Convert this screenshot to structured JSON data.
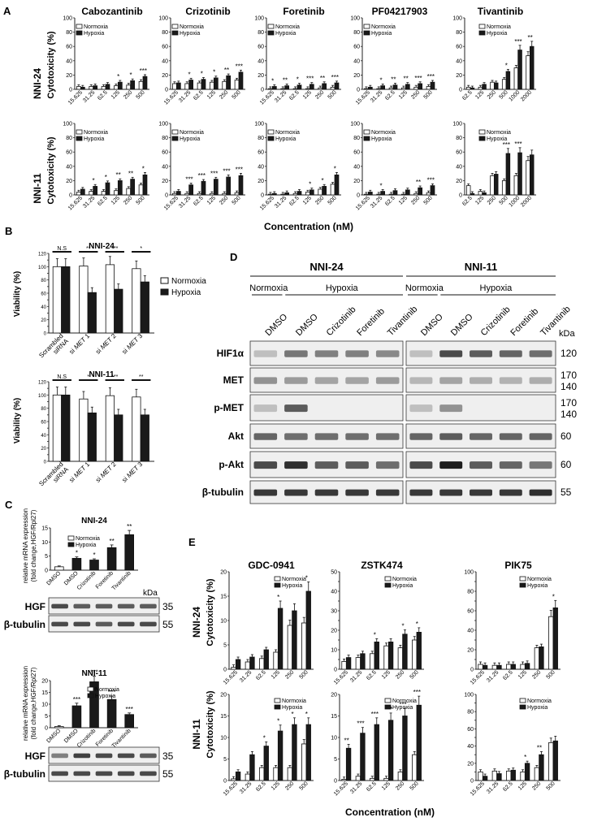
{
  "panel_letters": [
    "A",
    "B",
    "C",
    "D",
    "E"
  ],
  "panel_a": {
    "row_labels": [
      "NNI-24",
      "NNI-11"
    ],
    "ylabel": "Cytotoxicity (%)",
    "xlabel": "Concentration (nM)"
  },
  "legend": {
    "normoxia": "Normoxia",
    "hypoxia": "Hypoxia"
  },
  "panel_b": {
    "ylabel": "Viability (%)",
    "legend": {
      "normoxia": "Normoxia",
      "hypoxia": "Hypoxia"
    }
  },
  "panel_c": {
    "ylabel_lines": [
      "relative mRNA expression",
      "(fold change,HGF/Rpl27)"
    ],
    "blot_labels": [
      "HGF",
      "β-tubulin"
    ],
    "mw": [
      "35",
      "55"
    ],
    "kda": "kDa"
  },
  "panel_d": {
    "cells": [
      "NNI-24",
      "NNI-11"
    ],
    "conditions": [
      "Normoxia",
      "Hypoxia"
    ],
    "lanes": [
      "DMSO",
      "DMSO",
      "Crizotinib",
      "Foretinib",
      "Tivantinib"
    ],
    "rows": [
      "HIF1α",
      "MET",
      "p-MET",
      "Akt",
      "p-Akt",
      "β-tubulin"
    ],
    "mw": [
      "120",
      "170\n140",
      "170\n140",
      "60",
      "60",
      "55"
    ],
    "kda": "kDa"
  },
  "panel_e": {
    "row_labels": [
      "NNI-24",
      "NNI-11"
    ],
    "ylabel": "Cytotoxicity (%)",
    "xlabel": "Concentration (nM)"
  },
  "colors": {
    "normoxia": "#ffffff",
    "hypoxia": "#1a1a1a",
    "axis": "#222222"
  },
  "chart_data": [
    {
      "id": "A-cabo-24",
      "type": "bar",
      "title": "Cabozantinib",
      "categories": [
        "15.625",
        "31.25",
        "62.5",
        "125",
        "250",
        "500"
      ],
      "ylim": [
        0,
        100
      ],
      "yticks": [
        0,
        20,
        40,
        60,
        80,
        100
      ],
      "series": [
        {
          "name": "Normoxia",
          "values": [
            4,
            4,
            4,
            5,
            6,
            11
          ]
        },
        {
          "name": "Hypoxia",
          "values": [
            3,
            5,
            7,
            10,
            12,
            18
          ]
        }
      ],
      "sig": [
        "",
        "",
        "",
        "*",
        "*",
        "***"
      ]
    },
    {
      "id": "A-criz-24",
      "type": "bar",
      "title": "Crizotinib",
      "categories": [
        "15.625",
        "31.25",
        "62.5",
        "125",
        "250",
        "500"
      ],
      "ylim": [
        0,
        100
      ],
      "yticks": [
        0,
        20,
        40,
        60,
        80,
        100
      ],
      "series": [
        {
          "name": "Normoxia",
          "values": [
            8,
            8,
            9,
            10,
            11,
            13
          ]
        },
        {
          "name": "Hypoxia",
          "values": [
            9,
            13,
            14,
            16,
            19,
            24
          ]
        }
      ],
      "sig": [
        "",
        "*",
        "*",
        "*",
        "**",
        "***"
      ]
    },
    {
      "id": "A-fore-24",
      "type": "bar",
      "title": "Foretinib",
      "categories": [
        "15.625",
        "31.25",
        "62.5",
        "125",
        "250",
        "500"
      ],
      "ylim": [
        0,
        100
      ],
      "yticks": [
        0,
        20,
        40,
        60,
        80,
        100
      ],
      "series": [
        {
          "name": "Normoxia",
          "values": [
            1,
            1,
            1,
            1,
            2,
            3
          ]
        },
        {
          "name": "Hypoxia",
          "values": [
            4,
            5,
            6,
            7,
            8,
            9
          ]
        }
      ],
      "sig": [
        "*",
        "**",
        "*",
        "***",
        "**",
        "***"
      ]
    },
    {
      "id": "A-pf-24",
      "type": "bar",
      "title": "PF04217903",
      "categories": [
        "15.625",
        "31.25",
        "62.5",
        "125",
        "250",
        "500"
      ],
      "ylim": [
        0,
        100
      ],
      "yticks": [
        0,
        20,
        40,
        60,
        80,
        100
      ],
      "series": [
        {
          "name": "Normoxia",
          "values": [
            1,
            1,
            2,
            2,
            3,
            4
          ]
        },
        {
          "name": "Hypoxia",
          "values": [
            3,
            5,
            6,
            7,
            8,
            10
          ]
        }
      ],
      "sig": [
        "",
        "*",
        "**",
        "**",
        "***",
        "***"
      ]
    },
    {
      "id": "A-tiv-24",
      "type": "bar",
      "title": "Tivantinib",
      "categories": [
        "62.5",
        "125",
        "250",
        "500",
        "1000",
        "2000"
      ],
      "ylim": [
        0,
        100
      ],
      "yticks": [
        0,
        20,
        40,
        60,
        80,
        100
      ],
      "series": [
        {
          "name": "Normoxia",
          "values": [
            3,
            3,
            10,
            14,
            30,
            47
          ]
        },
        {
          "name": "Hypoxia",
          "values": [
            2,
            7,
            9,
            25,
            55,
            60
          ]
        }
      ],
      "sig": [
        "",
        "",
        "",
        "*",
        "***",
        "**"
      ]
    },
    {
      "id": "A-cabo-11",
      "type": "bar",
      "title": "",
      "categories": [
        "15.625",
        "31.25",
        "62.5",
        "125",
        "250",
        "500"
      ],
      "ylim": [
        0,
        100
      ],
      "yticks": [
        0,
        20,
        40,
        60,
        80,
        100
      ],
      "series": [
        {
          "name": "Normoxia",
          "values": [
            4,
            5,
            5,
            6,
            9,
            14
          ]
        },
        {
          "name": "Hypoxia",
          "values": [
            8,
            12,
            17,
            20,
            22,
            28
          ]
        }
      ],
      "sig": [
        "",
        "*",
        "*",
        "**",
        "**",
        "*"
      ]
    },
    {
      "id": "A-criz-11",
      "type": "bar",
      "title": "",
      "categories": [
        "15.625",
        "31.25",
        "62.5",
        "125",
        "250",
        "500"
      ],
      "ylim": [
        0,
        100
      ],
      "yticks": [
        0,
        20,
        40,
        60,
        80,
        100
      ],
      "series": [
        {
          "name": "Normoxia",
          "values": [
            2,
            2,
            2,
            2,
            2,
            3
          ]
        },
        {
          "name": "Hypoxia",
          "values": [
            5,
            14,
            19,
            22,
            25,
            27
          ]
        }
      ],
      "sig": [
        "",
        "***",
        "***",
        "***",
        "***",
        "***"
      ]
    },
    {
      "id": "A-fore-11",
      "type": "bar",
      "title": "",
      "categories": [
        "15.625",
        "31.25",
        "62.5",
        "125",
        "250",
        "500"
      ],
      "ylim": [
        0,
        100
      ],
      "yticks": [
        0,
        20,
        40,
        60,
        80,
        100
      ],
      "series": [
        {
          "name": "Normoxia",
          "values": [
            1,
            1,
            2,
            4,
            8,
            15
          ]
        },
        {
          "name": "Hypoxia",
          "values": [
            2,
            3,
            5,
            7,
            12,
            28
          ]
        }
      ],
      "sig": [
        "",
        "",
        "",
        "*",
        "*",
        "*"
      ]
    },
    {
      "id": "A-pf-11",
      "type": "bar",
      "title": "",
      "categories": [
        "15.625",
        "31.25",
        "62.5",
        "125",
        "250",
        "500"
      ],
      "ylim": [
        0,
        100
      ],
      "yticks": [
        0,
        20,
        40,
        60,
        80,
        100
      ],
      "series": [
        {
          "name": "Normoxia",
          "values": [
            1,
            1,
            1,
            1,
            2,
            3
          ]
        },
        {
          "name": "Hypoxia",
          "values": [
            4,
            5,
            6,
            7,
            10,
            13
          ]
        }
      ],
      "sig": [
        "",
        "*",
        "",
        "",
        "**",
        "***"
      ]
    },
    {
      "id": "A-tiv-11",
      "type": "bar",
      "title": "",
      "categories": [
        "62.5",
        "125",
        "250",
        "500",
        "1000",
        "2000"
      ],
      "ylim": [
        0,
        100
      ],
      "yticks": [
        0,
        20,
        40,
        60,
        80,
        100
      ],
      "series": [
        {
          "name": "Normoxia",
          "values": [
            13,
            5,
            27,
            20,
            27,
            48
          ]
        },
        {
          "name": "Hypoxia",
          "values": [
            2,
            3,
            29,
            58,
            59,
            56
          ]
        }
      ],
      "sig": [
        "",
        "",
        "",
        "***",
        "***",
        ""
      ]
    },
    {
      "id": "B-24",
      "type": "bar",
      "title": "NNI-24",
      "categories": [
        "Scrambled siRNA",
        "si MET 1",
        "si MET 2",
        "si MET 3"
      ],
      "ylim": [
        0,
        120
      ],
      "yticks": [
        0,
        10,
        20,
        30,
        40,
        50,
        60,
        70,
        80,
        90,
        100,
        110,
        120
      ],
      "series": [
        {
          "name": "Normoxia",
          "values": [
            100,
            101,
            103,
            97
          ]
        },
        {
          "name": "Hypoxia",
          "values": [
            100,
            61,
            66,
            77
          ]
        }
      ],
      "sig": [
        "N.S",
        "**",
        "***",
        "*"
      ]
    },
    {
      "id": "B-11",
      "type": "bar",
      "title": "NNI-11",
      "categories": [
        "Scrambled siRNA",
        "si MET 1",
        "si MET 2",
        "si MET 3"
      ],
      "ylim": [
        0,
        120
      ],
      "yticks": [
        0,
        10,
        20,
        30,
        40,
        50,
        60,
        70,
        80,
        90,
        100,
        110,
        120
      ],
      "series": [
        {
          "name": "Normoxia",
          "values": [
            100,
            94,
            99,
            97
          ]
        },
        {
          "name": "Hypoxia",
          "values": [
            100,
            73,
            70,
            70
          ]
        }
      ],
      "sig": [
        "N.S",
        "*",
        "***",
        "**"
      ]
    },
    {
      "id": "C-24",
      "type": "bar",
      "title": "NNI-24",
      "categories": [
        "DMSO",
        "DMSO",
        "Crizotinib",
        "Foretinib",
        "Tivantinib"
      ],
      "ylim": [
        0,
        15
      ],
      "yticks": [
        0,
        5,
        10,
        15
      ],
      "values": [
        1.2,
        4.2,
        3.6,
        8.0,
        12.6
      ],
      "bar_colors": [
        "normoxia",
        "hypoxia",
        "hypoxia",
        "hypoxia",
        "hypoxia"
      ],
      "sig": [
        "",
        "*",
        "*",
        "**",
        "**"
      ]
    },
    {
      "id": "C-11",
      "type": "bar",
      "title": "NNI-11",
      "categories": [
        "DMSO",
        "DMSO",
        "Crizotinib",
        "Foretinib",
        "Tivantinib"
      ],
      "ylim": [
        0,
        20
      ],
      "yticks": [
        0,
        5,
        10,
        15,
        20
      ],
      "values": [
        0.5,
        9.3,
        19.5,
        12.0,
        5.6
      ],
      "bar_colors": [
        "normoxia",
        "hypoxia",
        "hypoxia",
        "hypoxia",
        "hypoxia"
      ],
      "sig": [
        "",
        "***",
        "***",
        "***",
        "***"
      ]
    },
    {
      "id": "E-gdc-24",
      "type": "bar",
      "title": "GDC-0941",
      "categories": [
        "15.625",
        "31.25",
        "62.5",
        "125",
        "250",
        "500"
      ],
      "ylim": [
        0,
        20
      ],
      "yticks": [
        0,
        5,
        10,
        15,
        20
      ],
      "series": [
        {
          "name": "Normoxia",
          "values": [
            0.4,
            1.5,
            2.2,
            3.5,
            9.0,
            9.5
          ]
        },
        {
          "name": "Hypoxia",
          "values": [
            2.0,
            2.5,
            4.0,
            12.5,
            12.0,
            16.0
          ]
        }
      ],
      "sig": [
        "",
        "",
        "",
        "*",
        "",
        "*"
      ]
    },
    {
      "id": "E-zstk-24",
      "type": "bar",
      "title": "ZSTK474",
      "categories": [
        "15.625",
        "31.25",
        "62.5",
        "125",
        "250",
        "500"
      ],
      "ylim": [
        0,
        50
      ],
      "yticks": [
        0,
        5,
        10,
        15,
        20,
        25,
        30,
        35,
        40,
        45,
        50
      ],
      "series": [
        {
          "name": "Normoxia",
          "values": [
            4,
            6,
            8,
            12,
            11,
            15
          ]
        },
        {
          "name": "Hypoxia",
          "values": [
            6,
            8,
            14,
            14,
            18,
            19
          ]
        }
      ],
      "sig": [
        "",
        "",
        "*",
        "",
        "*",
        "*"
      ]
    },
    {
      "id": "E-pik-24",
      "type": "bar",
      "title": "PIK75",
      "categories": [
        "15.625",
        "31.25",
        "62.5",
        "125",
        "250",
        "500"
      ],
      "ylim": [
        0,
        100
      ],
      "yticks": [
        0,
        10,
        20,
        30,
        40,
        50,
        60,
        70,
        80,
        90,
        100
      ],
      "series": [
        {
          "name": "Normoxia",
          "values": [
            5,
            4,
            5,
            5,
            22,
            54
          ]
        },
        {
          "name": "Hypoxia",
          "values": [
            4,
            4,
            5,
            6,
            23,
            63
          ]
        }
      ],
      "sig": [
        "",
        "",
        "",
        "",
        "",
        "*"
      ]
    },
    {
      "id": "E-gdc-11",
      "type": "bar",
      "title": "",
      "categories": [
        "15.625",
        "31.25",
        "62.5",
        "125",
        "250",
        "500"
      ],
      "ylim": [
        0,
        20
      ],
      "yticks": [
        0,
        5,
        10,
        15,
        20
      ],
      "series": [
        {
          "name": "Normoxia",
          "values": [
            0.4,
            1.5,
            3.0,
            3.0,
            3.0,
            8.5
          ]
        },
        {
          "name": "Hypoxia",
          "values": [
            2.0,
            6.0,
            8.0,
            11.5,
            13.0,
            13.0
          ]
        }
      ],
      "sig": [
        "",
        "",
        "*",
        "*",
        "*",
        "*"
      ]
    },
    {
      "id": "E-zstk-11",
      "type": "bar",
      "title": "",
      "categories": [
        "15.625",
        "31.25",
        "62.5",
        "125",
        "250",
        "500"
      ],
      "ylim": [
        0,
        20
      ],
      "yticks": [
        0,
        5,
        10,
        15,
        20
      ],
      "series": [
        {
          "name": "Normoxia",
          "values": [
            0.3,
            1.0,
            0.5,
            0.5,
            2.0,
            6.0
          ]
        },
        {
          "name": "Hypoxia",
          "values": [
            7.5,
            11.0,
            13.0,
            14.0,
            15.0,
            17.5
          ]
        }
      ],
      "sig": [
        "**",
        "***",
        "***",
        "***",
        "***",
        "***"
      ]
    },
    {
      "id": "E-pik-11",
      "type": "bar",
      "title": "",
      "categories": [
        "15.625",
        "31.25",
        "62.5",
        "125",
        "250",
        "500"
      ],
      "ylim": [
        0,
        100
      ],
      "yticks": [
        0,
        10,
        20,
        30,
        40,
        50,
        60,
        70,
        80,
        90,
        100
      ],
      "series": [
        {
          "name": "Normoxia",
          "values": [
            10,
            11,
            11,
            10,
            15,
            44
          ]
        },
        {
          "name": "Hypoxia",
          "values": [
            5,
            8,
            12,
            20,
            30,
            46
          ]
        }
      ],
      "sig": [
        "",
        "",
        "",
        "*",
        "**",
        ""
      ]
    }
  ]
}
